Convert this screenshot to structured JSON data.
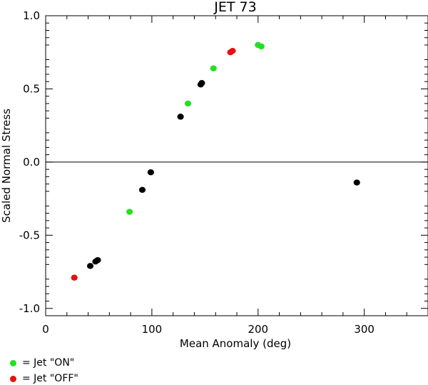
{
  "chart_data": {
    "type": "scatter",
    "title": "JET 73",
    "xlabel": "Mean Anomaly (deg)",
    "ylabel": "Scaled Normal Stress",
    "xlim": [
      0,
      360
    ],
    "ylim": [
      -1.05,
      1.0
    ],
    "xticks": [
      0,
      100,
      200,
      300
    ],
    "xtick_labels": [
      "0",
      "100",
      "200",
      "300"
    ],
    "yticks": [
      -1.0,
      -0.5,
      0.0,
      0.5,
      1.0
    ],
    "ytick_labels": [
      "-1.0",
      "-0.5",
      "0.0",
      "0.5",
      "1.0"
    ],
    "reference_line_y": 0.0,
    "grid": false,
    "legend_position": "below-left",
    "series": [
      {
        "name": "Jet \"ON\"",
        "color": "#22e022",
        "points": [
          {
            "x": 79,
            "y": -0.34
          },
          {
            "x": 134,
            "y": 0.4
          },
          {
            "x": 158,
            "y": 0.64
          },
          {
            "x": 200,
            "y": 0.8
          },
          {
            "x": 203,
            "y": 0.79
          }
        ]
      },
      {
        "name": "Jet \"OFF\"",
        "color": "#e81010",
        "points": [
          {
            "x": 27,
            "y": -0.79
          },
          {
            "x": 174,
            "y": 0.75
          },
          {
            "x": 176,
            "y": 0.76
          }
        ]
      },
      {
        "name": "",
        "color": "#000000",
        "points": [
          {
            "x": 42,
            "y": -0.71
          },
          {
            "x": 47,
            "y": -0.68
          },
          {
            "x": 49,
            "y": -0.67
          },
          {
            "x": 91,
            "y": -0.19
          },
          {
            "x": 99,
            "y": -0.07
          },
          {
            "x": 127,
            "y": 0.31
          },
          {
            "x": 146,
            "y": 0.53
          },
          {
            "x": 147,
            "y": 0.54
          },
          {
            "x": 293,
            "y": -0.14
          }
        ]
      }
    ]
  },
  "legend": [
    {
      "label": "= Jet \"ON\"",
      "color": "#22e022"
    },
    {
      "label": "= Jet \"OFF\"",
      "color": "#e81010"
    }
  ]
}
